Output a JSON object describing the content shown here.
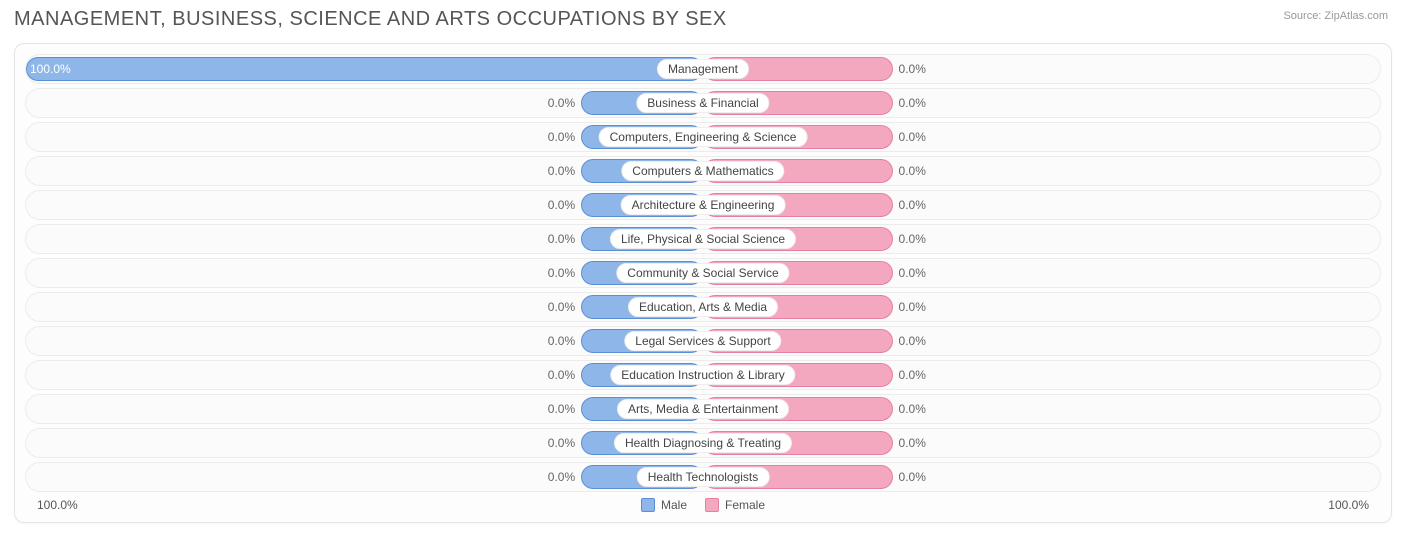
{
  "title": "MANAGEMENT, BUSINESS, SCIENCE AND ARTS OCCUPATIONS BY SEX",
  "source_label": "Source: ZipAtlas.com",
  "colors": {
    "male_fill": "#8fb6e8",
    "male_border": "#5a8fd6",
    "female_fill": "#f3a8bf",
    "female_border": "#e77fa2",
    "row_bg": "#fbfbfb",
    "row_border": "#ececec",
    "text": "#555555"
  },
  "chart": {
    "type": "diverging-bar",
    "axis_left": "100.0%",
    "axis_right": "100.0%",
    "default_male_bar_pct": 18,
    "default_female_bar_pct": 28,
    "rows": [
      {
        "label": "Management",
        "male_pct": "100.0%",
        "female_pct": "0.0%",
        "male_bar": 100,
        "female_bar": 28
      },
      {
        "label": "Business & Financial",
        "male_pct": "0.0%",
        "female_pct": "0.0%",
        "male_bar": 18,
        "female_bar": 28
      },
      {
        "label": "Computers, Engineering & Science",
        "male_pct": "0.0%",
        "female_pct": "0.0%",
        "male_bar": 18,
        "female_bar": 28
      },
      {
        "label": "Computers & Mathematics",
        "male_pct": "0.0%",
        "female_pct": "0.0%",
        "male_bar": 18,
        "female_bar": 28
      },
      {
        "label": "Architecture & Engineering",
        "male_pct": "0.0%",
        "female_pct": "0.0%",
        "male_bar": 18,
        "female_bar": 28
      },
      {
        "label": "Life, Physical & Social Science",
        "male_pct": "0.0%",
        "female_pct": "0.0%",
        "male_bar": 18,
        "female_bar": 28
      },
      {
        "label": "Community & Social Service",
        "male_pct": "0.0%",
        "female_pct": "0.0%",
        "male_bar": 18,
        "female_bar": 28
      },
      {
        "label": "Education, Arts & Media",
        "male_pct": "0.0%",
        "female_pct": "0.0%",
        "male_bar": 18,
        "female_bar": 28
      },
      {
        "label": "Legal Services & Support",
        "male_pct": "0.0%",
        "female_pct": "0.0%",
        "male_bar": 18,
        "female_bar": 28
      },
      {
        "label": "Education Instruction & Library",
        "male_pct": "0.0%",
        "female_pct": "0.0%",
        "male_bar": 18,
        "female_bar": 28
      },
      {
        "label": "Arts, Media & Entertainment",
        "male_pct": "0.0%",
        "female_pct": "0.0%",
        "male_bar": 18,
        "female_bar": 28
      },
      {
        "label": "Health Diagnosing & Treating",
        "male_pct": "0.0%",
        "female_pct": "0.0%",
        "male_bar": 18,
        "female_bar": 28
      },
      {
        "label": "Health Technologists",
        "male_pct": "0.0%",
        "female_pct": "0.0%",
        "male_bar": 18,
        "female_bar": 28
      }
    ]
  },
  "legend": {
    "male": "Male",
    "female": "Female"
  }
}
